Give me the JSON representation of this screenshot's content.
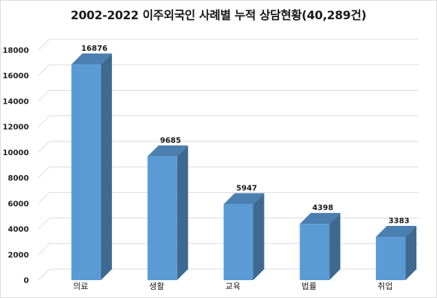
{
  "chart_data": {
    "type": "bar",
    "title": "2002-2022 이주외국인 사례별 누적 상담현황(40,289건)",
    "xlabel": "",
    "ylabel": "",
    "categories": [
      "의료",
      "생활",
      "교육",
      "법률",
      "취업"
    ],
    "values": [
      16876,
      9685,
      5947,
      4398,
      3383
    ],
    "data_labels": [
      "16876",
      "9685",
      "5947",
      "4398",
      "3383"
    ],
    "ylim": [
      0,
      18000
    ],
    "yticks": [
      0,
      2000,
      4000,
      6000,
      8000,
      10000,
      12000,
      14000,
      16000,
      18000
    ],
    "grid": true,
    "legend": "none",
    "style": "3d-column",
    "colors": {
      "bar_front": "#5b9bd5",
      "bar_side": "#3e6a91",
      "bar_top": "#4b7fb0",
      "grid": "#d9d9d9",
      "wall": "#ffffff"
    }
  }
}
